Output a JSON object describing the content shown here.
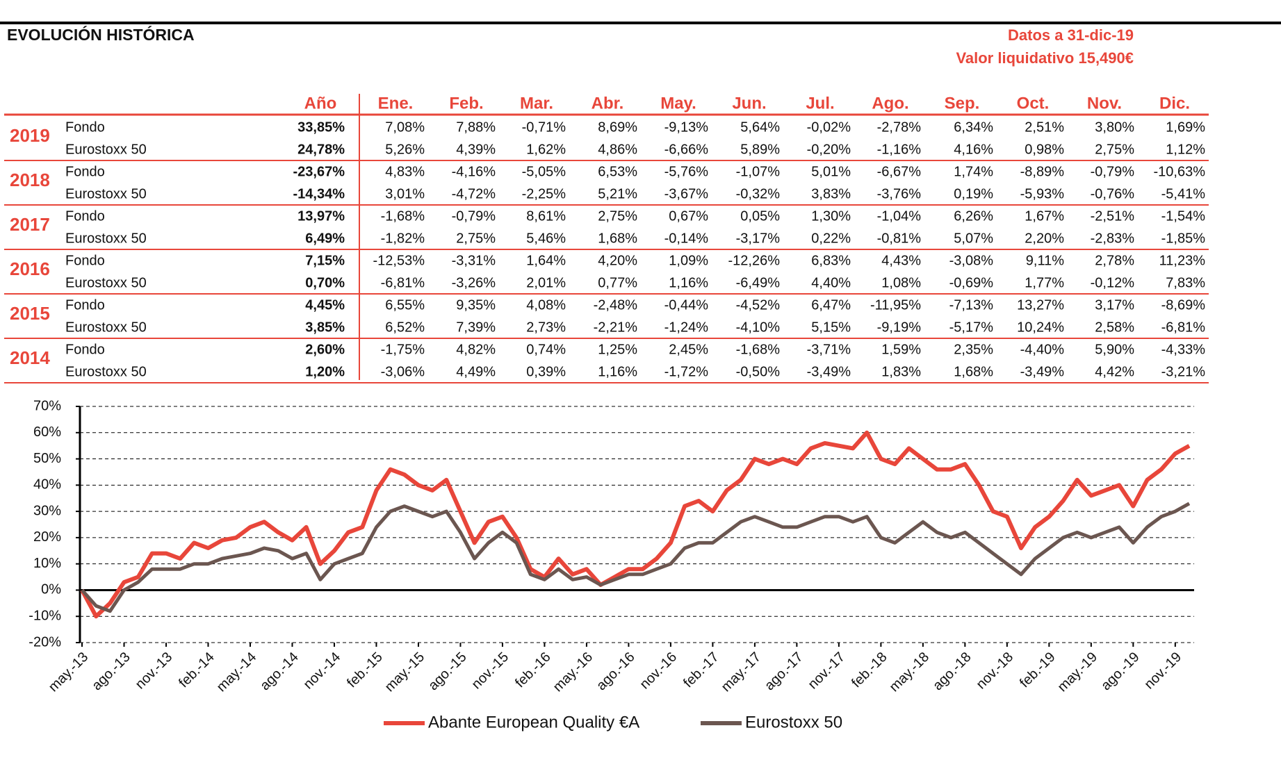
{
  "header": {
    "title": "EVOLUCIÓN HISTÓRICA",
    "date": "Datos a 31-dic-19",
    "nav": "Valor liquidativo 15,490€"
  },
  "table": {
    "columns": [
      "Año",
      "Ene.",
      "Feb.",
      "Mar.",
      "Abr.",
      "May.",
      "Jun.",
      "Jul.",
      "Ago.",
      "Sep.",
      "Oct.",
      "Nov.",
      "Dic."
    ],
    "groups": [
      {
        "year": "2019",
        "rows": [
          {
            "name": "Fondo",
            "values": [
              "33,85%",
              "7,08%",
              "7,88%",
              "-0,71%",
              "8,69%",
              "-9,13%",
              "5,64%",
              "-0,02%",
              "-2,78%",
              "6,34%",
              "2,51%",
              "3,80%",
              "1,69%"
            ]
          },
          {
            "name": "Eurostoxx 50",
            "values": [
              "24,78%",
              "5,26%",
              "4,39%",
              "1,62%",
              "4,86%",
              "-6,66%",
              "5,89%",
              "-0,20%",
              "-1,16%",
              "4,16%",
              "0,98%",
              "2,75%",
              "1,12%"
            ]
          }
        ]
      },
      {
        "year": "2018",
        "rows": [
          {
            "name": "Fondo",
            "values": [
              "-23,67%",
              "4,83%",
              "-4,16%",
              "-5,05%",
              "6,53%",
              "-5,76%",
              "-1,07%",
              "5,01%",
              "-6,67%",
              "1,74%",
              "-8,89%",
              "-0,79%",
              "-10,63%"
            ]
          },
          {
            "name": "Eurostoxx 50",
            "values": [
              "-14,34%",
              "3,01%",
              "-4,72%",
              "-2,25%",
              "5,21%",
              "-3,67%",
              "-0,32%",
              "3,83%",
              "-3,76%",
              "0,19%",
              "-5,93%",
              "-0,76%",
              "-5,41%"
            ]
          }
        ]
      },
      {
        "year": "2017",
        "rows": [
          {
            "name": "Fondo",
            "values": [
              "13,97%",
              "-1,68%",
              "-0,79%",
              "8,61%",
              "2,75%",
              "0,67%",
              "0,05%",
              "1,30%",
              "-1,04%",
              "6,26%",
              "1,67%",
              "-2,51%",
              "-1,54%"
            ]
          },
          {
            "name": "Eurostoxx 50",
            "values": [
              "6,49%",
              "-1,82%",
              "2,75%",
              "5,46%",
              "1,68%",
              "-0,14%",
              "-3,17%",
              "0,22%",
              "-0,81%",
              "5,07%",
              "2,20%",
              "-2,83%",
              "-1,85%"
            ]
          }
        ]
      },
      {
        "year": "2016",
        "rows": [
          {
            "name": "Fondo",
            "values": [
              "7,15%",
              "-12,53%",
              "-3,31%",
              "1,64%",
              "4,20%",
              "1,09%",
              "-12,26%",
              "6,83%",
              "4,43%",
              "-3,08%",
              "9,11%",
              "2,78%",
              "11,23%"
            ]
          },
          {
            "name": "Eurostoxx 50",
            "values": [
              "0,70%",
              "-6,81%",
              "-3,26%",
              "2,01%",
              "0,77%",
              "1,16%",
              "-6,49%",
              "4,40%",
              "1,08%",
              "-0,69%",
              "1,77%",
              "-0,12%",
              "7,83%"
            ]
          }
        ]
      },
      {
        "year": "2015",
        "rows": [
          {
            "name": "Fondo",
            "values": [
              "4,45%",
              "6,55%",
              "9,35%",
              "4,08%",
              "-2,48%",
              "-0,44%",
              "-4,52%",
              "6,47%",
              "-11,95%",
              "-7,13%",
              "13,27%",
              "3,17%",
              "-8,69%"
            ]
          },
          {
            "name": "Eurostoxx 50",
            "values": [
              "3,85%",
              "6,52%",
              "7,39%",
              "2,73%",
              "-2,21%",
              "-1,24%",
              "-4,10%",
              "5,15%",
              "-9,19%",
              "-5,17%",
              "10,24%",
              "2,58%",
              "-6,81%"
            ]
          }
        ]
      },
      {
        "year": "2014",
        "rows": [
          {
            "name": "Fondo",
            "values": [
              "2,60%",
              "-1,75%",
              "4,82%",
              "0,74%",
              "1,25%",
              "2,45%",
              "-1,68%",
              "-3,71%",
              "1,59%",
              "2,35%",
              "-4,40%",
              "5,90%",
              "-4,33%"
            ]
          },
          {
            "name": "Eurostoxx 50",
            "values": [
              "1,20%",
              "-3,06%",
              "4,49%",
              "0,39%",
              "1,16%",
              "-1,72%",
              "-0,50%",
              "-3,49%",
              "1,83%",
              "1,68%",
              "-3,49%",
              "4,42%",
              "-3,21%"
            ]
          }
        ]
      }
    ]
  },
  "chart_data": {
    "type": "line",
    "categories": [
      "may.-13",
      null,
      null,
      "ago.-13",
      null,
      null,
      "nov.-13",
      null,
      null,
      "feb.-14",
      null,
      null,
      "may.-14",
      null,
      null,
      "ago.-14",
      null,
      null,
      "nov.-14",
      null,
      null,
      "feb.-15",
      null,
      null,
      "may.-15",
      null,
      null,
      "ago.-15",
      null,
      null,
      "nov.-15",
      null,
      null,
      "feb.-16",
      null,
      null,
      "may.-16",
      null,
      null,
      "ago.-16",
      null,
      null,
      "nov.-16",
      null,
      null,
      "feb.-17",
      null,
      null,
      "may.-17",
      null,
      null,
      "ago.-17",
      null,
      null,
      "nov.-17",
      null,
      null,
      "feb.-18",
      null,
      null,
      "may.-18",
      null,
      null,
      "ago.-18",
      null,
      null,
      "nov.-18",
      null,
      null,
      "feb.-19",
      null,
      null,
      "may.-19",
      null,
      null,
      "ago.-19",
      null,
      null,
      "nov.-19",
      null
    ],
    "series": [
      {
        "name": "Abante European Quality €A",
        "color": "#e8463a",
        "values": [
          0,
          -10,
          -5,
          3,
          5,
          14,
          14,
          12,
          18,
          16,
          19,
          20,
          24,
          26,
          22,
          19,
          24,
          10,
          15,
          22,
          24,
          38,
          46,
          44,
          40,
          38,
          42,
          30,
          18,
          26,
          28,
          20,
          8,
          5,
          12,
          6,
          8,
          2,
          5,
          8,
          8,
          12,
          18,
          32,
          34,
          30,
          38,
          42,
          50,
          48,
          50,
          48,
          54,
          56,
          55,
          54,
          60,
          50,
          48,
          54,
          50,
          46,
          46,
          48,
          40,
          30,
          28,
          16,
          24,
          28,
          34,
          42,
          36,
          38,
          40,
          32,
          42,
          46,
          52,
          55
        ]
      },
      {
        "name": "Eurostoxx 50",
        "color": "#6b5650",
        "values": [
          0,
          -6,
          -8,
          0,
          3,
          8,
          8,
          8,
          10,
          10,
          12,
          13,
          14,
          16,
          15,
          12,
          14,
          4,
          10,
          12,
          14,
          24,
          30,
          32,
          30,
          28,
          30,
          22,
          12,
          18,
          22,
          18,
          6,
          4,
          8,
          4,
          5,
          2,
          4,
          6,
          6,
          8,
          10,
          16,
          18,
          18,
          22,
          26,
          28,
          26,
          24,
          24,
          26,
          28,
          28,
          26,
          28,
          20,
          18,
          22,
          26,
          22,
          20,
          22,
          18,
          14,
          10,
          6,
          12,
          16,
          20,
          22,
          20,
          22,
          24,
          18,
          24,
          28,
          30,
          33
        ]
      }
    ],
    "ylim": [
      -20,
      70
    ],
    "yticks": [
      {
        "value": -20,
        "label": "-20%"
      },
      {
        "value": -10,
        "label": "-10%"
      },
      {
        "value": 0,
        "label": "0%"
      },
      {
        "value": 10,
        "label": "10%"
      },
      {
        "value": 20,
        "label": "20%"
      },
      {
        "value": 30,
        "label": "30%"
      },
      {
        "value": 40,
        "label": "40%"
      },
      {
        "value": 50,
        "label": "50%"
      },
      {
        "value": 60,
        "label": "60%"
      },
      {
        "value": 70,
        "label": "70%"
      }
    ],
    "grid": true,
    "legend": "bottom"
  }
}
